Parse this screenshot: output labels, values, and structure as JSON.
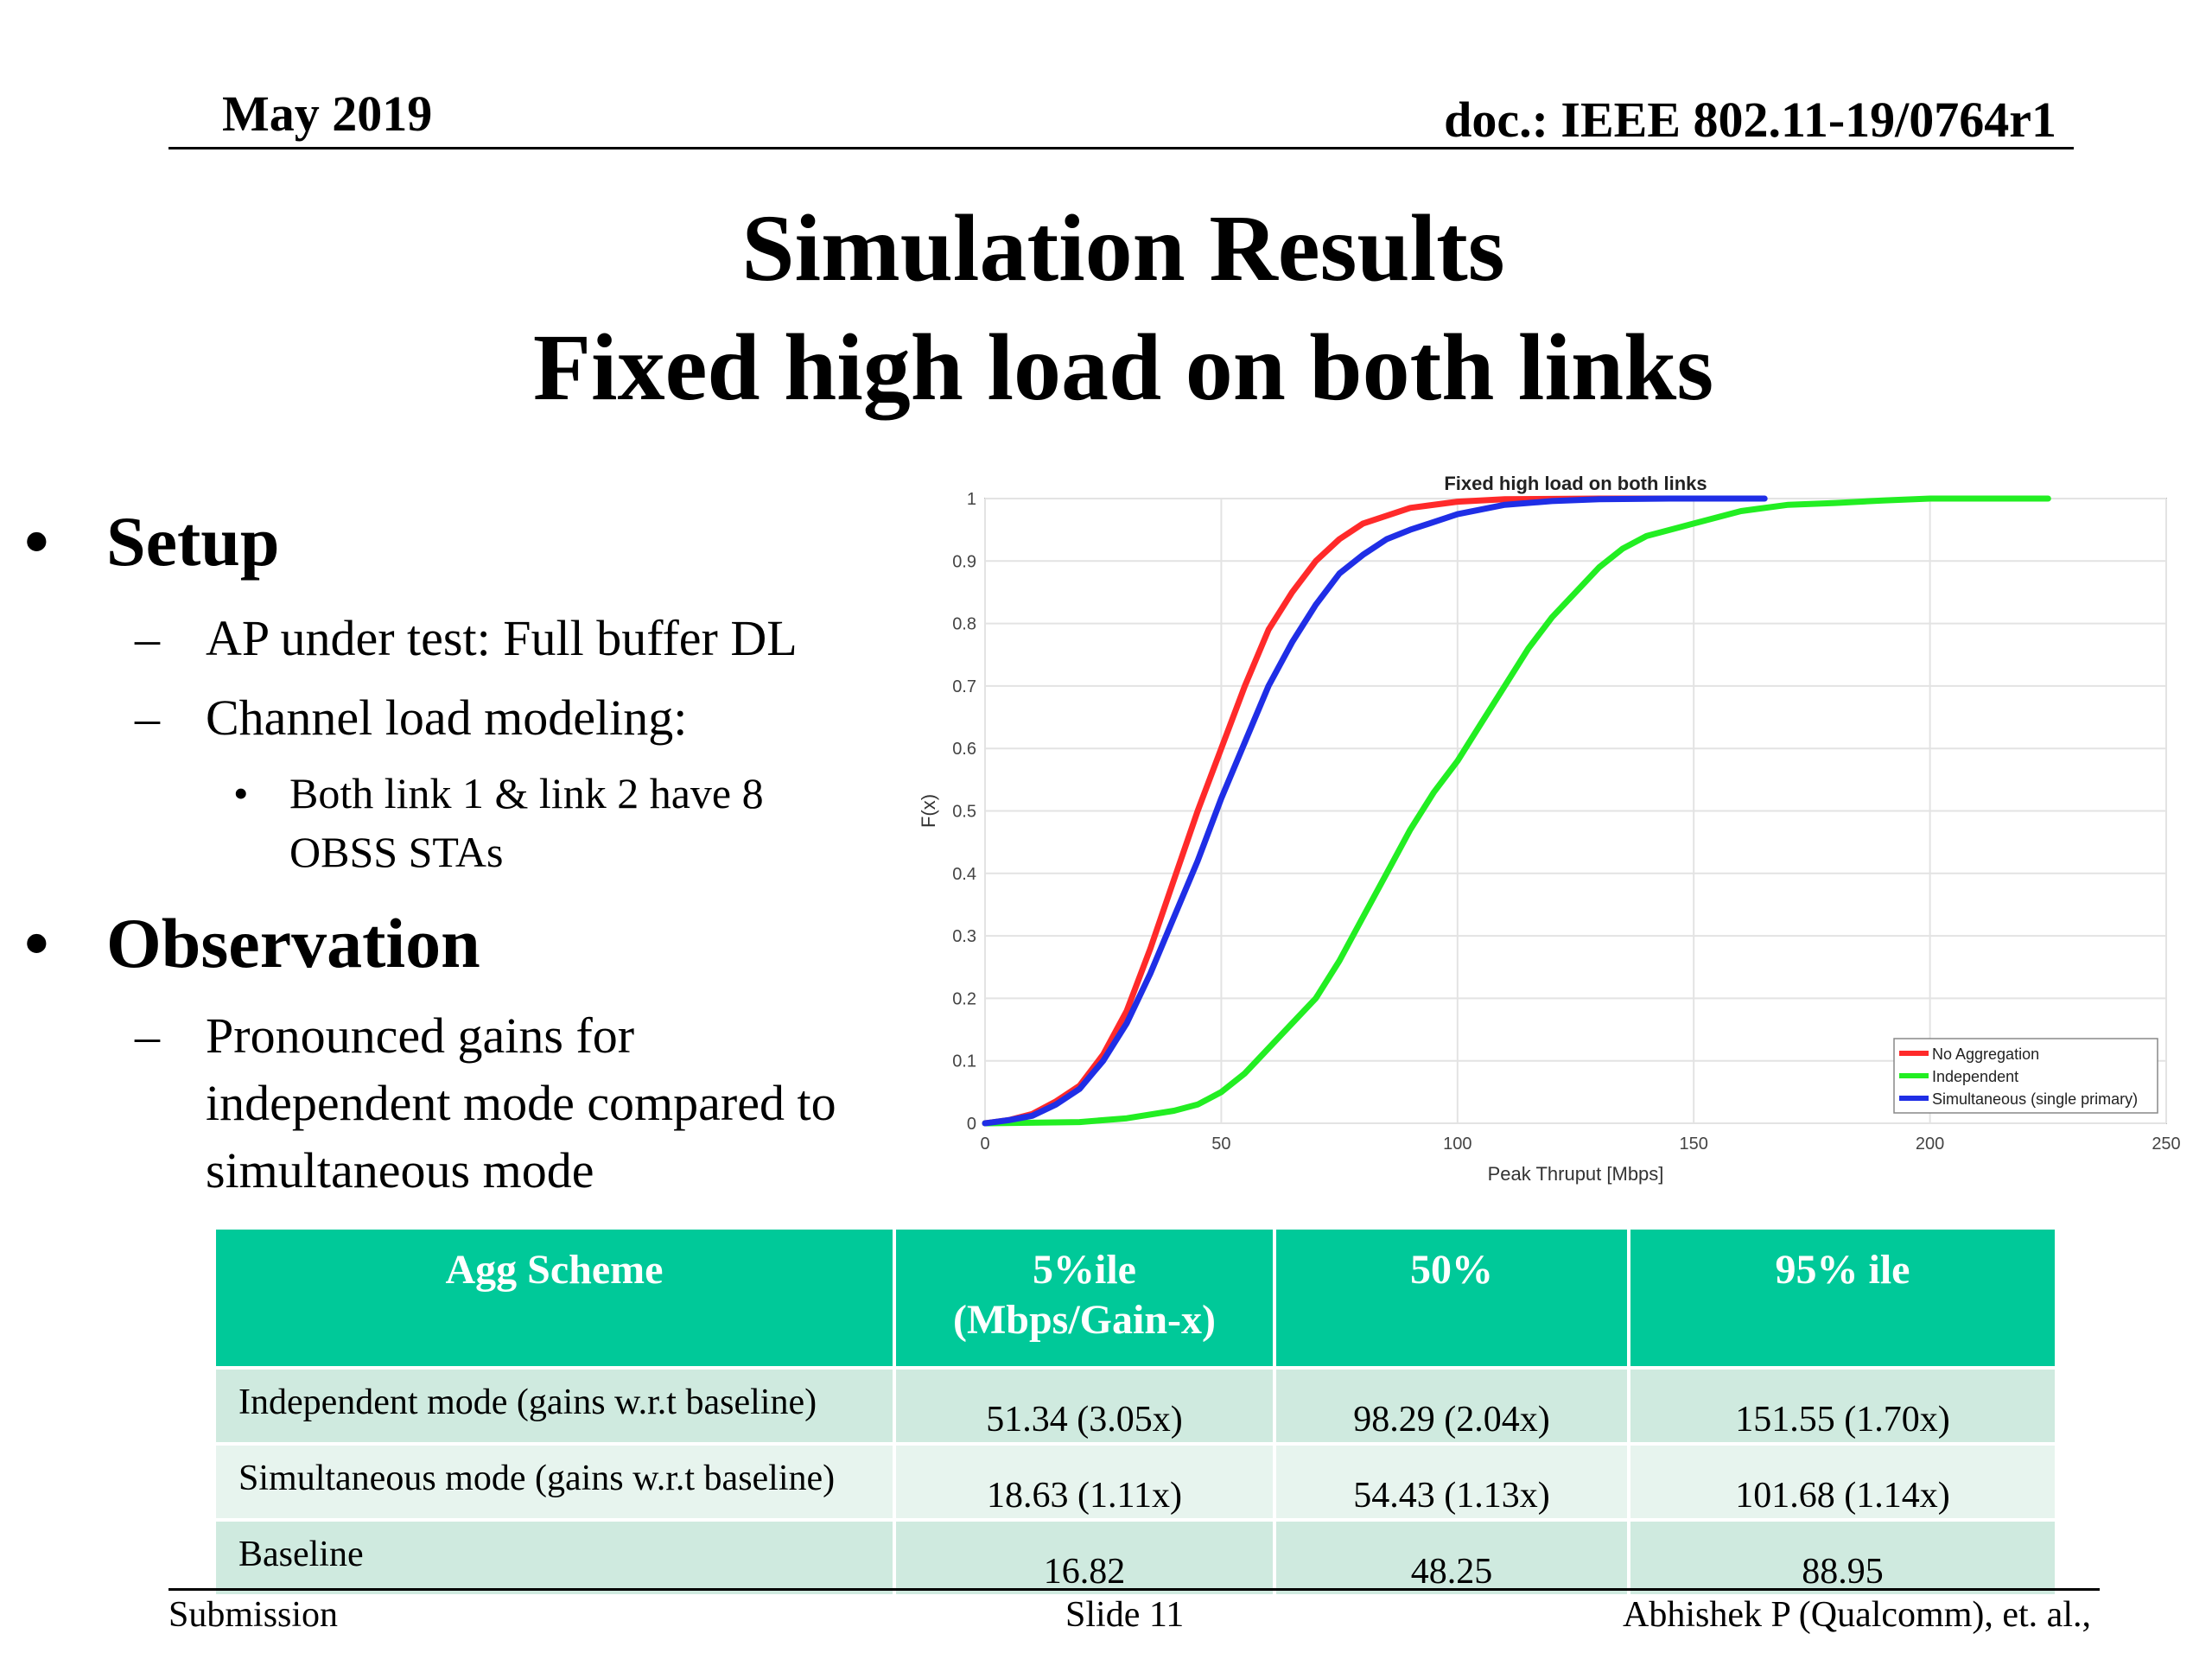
{
  "header": {
    "date": "May 2019",
    "doc": "doc.: IEEE 802.11-19/0764r1"
  },
  "title": {
    "line1": "Simulation Results",
    "line2": "Fixed high load on both links"
  },
  "bullets": {
    "setup": {
      "label": "Setup",
      "items": [
        "AP under test: Full buffer DL",
        "Channel load modeling:"
      ],
      "subitems": [
        "Both link 1 & link 2 have 8",
        "OBSS STAs"
      ]
    },
    "observation": {
      "label": "Observation",
      "lines": [
        "Pronounced gains for",
        "independent mode compared to",
        "simultaneous mode"
      ]
    }
  },
  "chart_data": {
    "type": "line",
    "title": "Fixed high load on both links",
    "xlabel": "Peak Thruput [Mbps]",
    "ylabel": "F(x)",
    "xlim": [
      0,
      250
    ],
    "ylim": [
      0,
      1
    ],
    "xticks": [
      0,
      50,
      100,
      150,
      200,
      250
    ],
    "yticks": [
      0,
      0.1,
      0.2,
      0.3,
      0.4,
      0.5,
      0.6,
      0.7,
      0.8,
      0.9,
      1
    ],
    "grid": true,
    "legend": "bottom-right",
    "series": [
      {
        "name": "No Aggregation",
        "color": "#ff2a2a",
        "points": [
          [
            0,
            0
          ],
          [
            5,
            0.005
          ],
          [
            10,
            0.015
          ],
          [
            15,
            0.035
          ],
          [
            20,
            0.06
          ],
          [
            25,
            0.11
          ],
          [
            30,
            0.18
          ],
          [
            35,
            0.28
          ],
          [
            40,
            0.39
          ],
          [
            45,
            0.5
          ],
          [
            50,
            0.6
          ],
          [
            55,
            0.7
          ],
          [
            60,
            0.79
          ],
          [
            65,
            0.85
          ],
          [
            70,
            0.9
          ],
          [
            75,
            0.935
          ],
          [
            80,
            0.96
          ],
          [
            90,
            0.985
          ],
          [
            100,
            0.995
          ],
          [
            110,
            0.999
          ],
          [
            130,
            1
          ],
          [
            160,
            1
          ]
        ]
      },
      {
        "name": "Independent",
        "color": "#22ee22",
        "points": [
          [
            0,
            0
          ],
          [
            20,
            0.002
          ],
          [
            30,
            0.008
          ],
          [
            40,
            0.02
          ],
          [
            45,
            0.03
          ],
          [
            50,
            0.05
          ],
          [
            55,
            0.08
          ],
          [
            60,
            0.12
          ],
          [
            65,
            0.16
          ],
          [
            70,
            0.2
          ],
          [
            75,
            0.26
          ],
          [
            80,
            0.33
          ],
          [
            85,
            0.4
          ],
          [
            90,
            0.47
          ],
          [
            95,
            0.53
          ],
          [
            100,
            0.58
          ],
          [
            105,
            0.64
          ],
          [
            110,
            0.7
          ],
          [
            115,
            0.76
          ],
          [
            120,
            0.81
          ],
          [
            125,
            0.85
          ],
          [
            130,
            0.89
          ],
          [
            135,
            0.92
          ],
          [
            140,
            0.94
          ],
          [
            145,
            0.95
          ],
          [
            150,
            0.96
          ],
          [
            160,
            0.98
          ],
          [
            170,
            0.99
          ],
          [
            180,
            0.993
          ],
          [
            190,
            0.997
          ],
          [
            200,
            1
          ],
          [
            225,
            1
          ]
        ]
      },
      {
        "name": "Simultaneous (single primary)",
        "color": "#1f2ee6",
        "points": [
          [
            0,
            0
          ],
          [
            5,
            0.005
          ],
          [
            10,
            0.012
          ],
          [
            15,
            0.03
          ],
          [
            20,
            0.055
          ],
          [
            25,
            0.1
          ],
          [
            30,
            0.16
          ],
          [
            35,
            0.24
          ],
          [
            40,
            0.33
          ],
          [
            45,
            0.42
          ],
          [
            50,
            0.52
          ],
          [
            55,
            0.61
          ],
          [
            60,
            0.7
          ],
          [
            65,
            0.77
          ],
          [
            70,
            0.83
          ],
          [
            75,
            0.88
          ],
          [
            80,
            0.91
          ],
          [
            85,
            0.935
          ],
          [
            90,
            0.95
          ],
          [
            100,
            0.975
          ],
          [
            110,
            0.99
          ],
          [
            120,
            0.996
          ],
          [
            130,
            0.999
          ],
          [
            145,
            1
          ],
          [
            165,
            1
          ]
        ]
      }
    ]
  },
  "table": {
    "headers": [
      "Agg Scheme",
      "5%ile\n(Mbps/Gain-x)",
      "50%",
      "95% ile"
    ],
    "rows": [
      [
        "Independent mode (gains w.r.t baseline)",
        "51.34 (3.05x)",
        "98.29 (2.04x)",
        "151.55 (1.70x)"
      ],
      [
        "Simultaneous mode (gains w.r.t baseline)",
        "18.63 (1.11x)",
        "54.43 (1.13x)",
        "101.68 (1.14x)"
      ],
      [
        "Baseline",
        "16.82",
        "48.25",
        "88.95"
      ]
    ]
  },
  "footer": {
    "left": "Submission",
    "center": "Slide 11",
    "right": "Abhishek P (Qualcomm), et. al.,"
  }
}
